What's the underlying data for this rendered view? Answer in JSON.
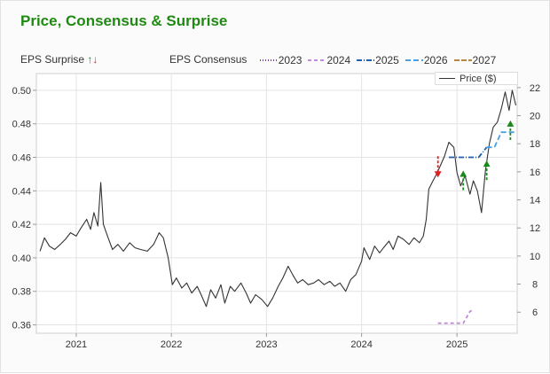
{
  "header": {
    "title": "Price, Consensus & Surprise"
  },
  "legend": {
    "surprise_label": "EPS Surprise",
    "consensus_label": "EPS Consensus",
    "years": [
      {
        "label": "2023",
        "color": "#7b3fa0",
        "dash": "1,2"
      },
      {
        "label": "2024",
        "color": "#c08ad8",
        "dash": "4,3"
      },
      {
        "label": "2025",
        "color": "#1f5fae",
        "dash": "6,2,1,2"
      },
      {
        "label": "2026",
        "color": "#4a9fe0",
        "dash": "6,3"
      },
      {
        "label": "2027",
        "color": "#b8863c",
        "dash": "6,2"
      }
    ],
    "price_label": "Price ($)",
    "up_color": "#1a8a1a",
    "down_color": "#e02020"
  },
  "chart_data": {
    "type": "line",
    "title": "Price, Consensus & Surprise",
    "xlabel": "",
    "ylabel_left": "",
    "ylabel_right": "",
    "x_ticks": [
      "2021",
      "2022",
      "2023",
      "2024",
      "2025"
    ],
    "y_left_ticks": [
      "0.50",
      "0.48",
      "0.46",
      "0.44",
      "0.42",
      "0.40",
      "0.38",
      "0.36"
    ],
    "y_left_range": [
      0.355,
      0.51
    ],
    "y_right_ticks": [
      "22",
      "20",
      "18",
      "16",
      "14",
      "12",
      "10",
      "8",
      "6"
    ],
    "y_right_range": [
      4.5,
      23
    ],
    "x_range": [
      "2020-08-01",
      "2025-08-20"
    ],
    "grid": true,
    "series": [
      {
        "name": "Price ($)",
        "axis": "left",
        "color": "#333333",
        "points": [
          [
            "2020-08-15",
            0.404
          ],
          [
            "2020-09-01",
            0.412
          ],
          [
            "2020-09-20",
            0.407
          ],
          [
            "2020-10-10",
            0.405
          ],
          [
            "2020-11-01",
            0.408
          ],
          [
            "2020-11-20",
            0.411
          ],
          [
            "2020-12-10",
            0.415
          ],
          [
            "2021-01-01",
            0.413
          ],
          [
            "2021-01-20",
            0.418
          ],
          [
            "2021-02-10",
            0.423
          ],
          [
            "2021-02-25",
            0.417
          ],
          [
            "2021-03-10",
            0.427
          ],
          [
            "2021-03-25",
            0.419
          ],
          [
            "2021-04-05",
            0.445
          ],
          [
            "2021-04-15",
            0.42
          ],
          [
            "2021-05-01",
            0.413
          ],
          [
            "2021-05-20",
            0.405
          ],
          [
            "2021-06-10",
            0.408
          ],
          [
            "2021-07-01",
            0.404
          ],
          [
            "2021-07-25",
            0.409
          ],
          [
            "2021-08-15",
            0.406
          ],
          [
            "2021-09-05",
            0.405
          ],
          [
            "2021-10-01",
            0.404
          ],
          [
            "2021-10-25",
            0.408
          ],
          [
            "2021-11-15",
            0.415
          ],
          [
            "2021-12-01",
            0.412
          ],
          [
            "2021-12-20",
            0.4
          ],
          [
            "2022-01-05",
            0.384
          ],
          [
            "2022-01-20",
            0.388
          ],
          [
            "2022-02-10",
            0.382
          ],
          [
            "2022-03-01",
            0.385
          ],
          [
            "2022-03-20",
            0.379
          ],
          [
            "2022-04-10",
            0.383
          ],
          [
            "2022-04-25",
            0.378
          ],
          [
            "2022-05-15",
            0.371
          ],
          [
            "2022-06-01",
            0.381
          ],
          [
            "2022-06-20",
            0.376
          ],
          [
            "2022-07-10",
            0.384
          ],
          [
            "2022-07-25",
            0.373
          ],
          [
            "2022-08-15",
            0.383
          ],
          [
            "2022-09-01",
            0.38
          ],
          [
            "2022-09-25",
            0.385
          ],
          [
            "2022-10-15",
            0.379
          ],
          [
            "2022-11-01",
            0.373
          ],
          [
            "2022-11-20",
            0.378
          ],
          [
            "2022-12-15",
            0.375
          ],
          [
            "2023-01-05",
            0.371
          ],
          [
            "2023-01-25",
            0.376
          ],
          [
            "2023-02-15",
            0.383
          ],
          [
            "2023-03-05",
            0.388
          ],
          [
            "2023-03-25",
            0.395
          ],
          [
            "2023-04-15",
            0.389
          ],
          [
            "2023-05-01",
            0.385
          ],
          [
            "2023-05-20",
            0.387
          ],
          [
            "2023-06-10",
            0.384
          ],
          [
            "2023-07-01",
            0.385
          ],
          [
            "2023-07-20",
            0.387
          ],
          [
            "2023-08-10",
            0.384
          ],
          [
            "2023-09-01",
            0.386
          ],
          [
            "2023-09-20",
            0.383
          ],
          [
            "2023-10-10",
            0.385
          ],
          [
            "2023-11-01",
            0.38
          ],
          [
            "2023-11-20",
            0.387
          ],
          [
            "2023-12-10",
            0.39
          ],
          [
            "2024-01-01",
            0.398
          ],
          [
            "2024-01-10",
            0.406
          ],
          [
            "2024-02-01",
            0.399
          ],
          [
            "2024-02-20",
            0.407
          ],
          [
            "2024-03-10",
            0.403
          ],
          [
            "2024-03-25",
            0.406
          ],
          [
            "2024-04-15",
            0.41
          ],
          [
            "2024-05-01",
            0.405
          ],
          [
            "2024-05-20",
            0.413
          ],
          [
            "2024-06-10",
            0.411
          ],
          [
            "2024-07-01",
            0.408
          ],
          [
            "2024-07-20",
            0.412
          ],
          [
            "2024-08-10",
            0.409
          ],
          [
            "2024-08-25",
            0.413
          ],
          [
            "2024-09-05",
            0.423
          ],
          [
            "2024-09-15",
            0.441
          ],
          [
            "2024-10-01",
            0.446
          ],
          [
            "2024-10-15",
            0.45
          ],
          [
            "2024-11-01",
            0.456
          ],
          [
            "2024-11-15",
            0.461
          ],
          [
            "2024-12-01",
            0.469
          ],
          [
            "2024-12-20",
            0.466
          ],
          [
            "2025-01-01",
            0.451
          ],
          [
            "2025-01-15",
            0.443
          ],
          [
            "2025-02-01",
            0.449
          ],
          [
            "2025-02-20",
            0.438
          ],
          [
            "2025-03-05",
            0.446
          ],
          [
            "2025-03-20",
            0.44
          ],
          [
            "2025-04-05",
            0.427
          ],
          [
            "2025-04-20",
            0.452
          ],
          [
            "2025-05-05",
            0.468
          ],
          [
            "2025-05-20",
            0.478
          ],
          [
            "2025-06-05",
            0.481
          ],
          [
            "2025-06-20",
            0.489
          ],
          [
            "2025-07-05",
            0.499
          ],
          [
            "2025-07-20",
            0.488
          ],
          [
            "2025-08-01",
            0.5
          ],
          [
            "2025-08-15",
            0.491
          ]
        ]
      },
      {
        "name": "2024",
        "axis": "left",
        "color": "#c08ad8",
        "points": [
          [
            "2024-10-20",
            0.361
          ],
          [
            "2025-01-25",
            0.361
          ],
          [
            "2025-02-20",
            0.368
          ],
          [
            "2025-03-05",
            0.369
          ]
        ]
      },
      {
        "name": "2025",
        "axis": "left",
        "color": "#1f5fae",
        "points": [
          [
            "2024-12-01",
            0.46
          ],
          [
            "2025-03-25",
            0.46
          ],
          [
            "2025-04-10",
            0.463
          ],
          [
            "2025-04-25",
            0.466
          ]
        ]
      },
      {
        "name": "2026",
        "axis": "left",
        "color": "#4a9fe0",
        "points": [
          [
            "2025-04-25",
            0.466
          ],
          [
            "2025-05-25",
            0.466
          ],
          [
            "2025-06-20",
            0.475
          ],
          [
            "2025-07-15",
            0.475
          ],
          [
            "2025-08-15",
            0.475
          ]
        ]
      }
    ],
    "surprise_markers": [
      {
        "date": "2024-10-20",
        "value": 0.449,
        "direction": "down"
      },
      {
        "date": "2025-01-25",
        "value": 0.451,
        "direction": "up"
      },
      {
        "date": "2025-04-25",
        "value": 0.457,
        "direction": "up"
      },
      {
        "date": "2025-07-25",
        "value": 0.481,
        "direction": "up"
      }
    ]
  }
}
